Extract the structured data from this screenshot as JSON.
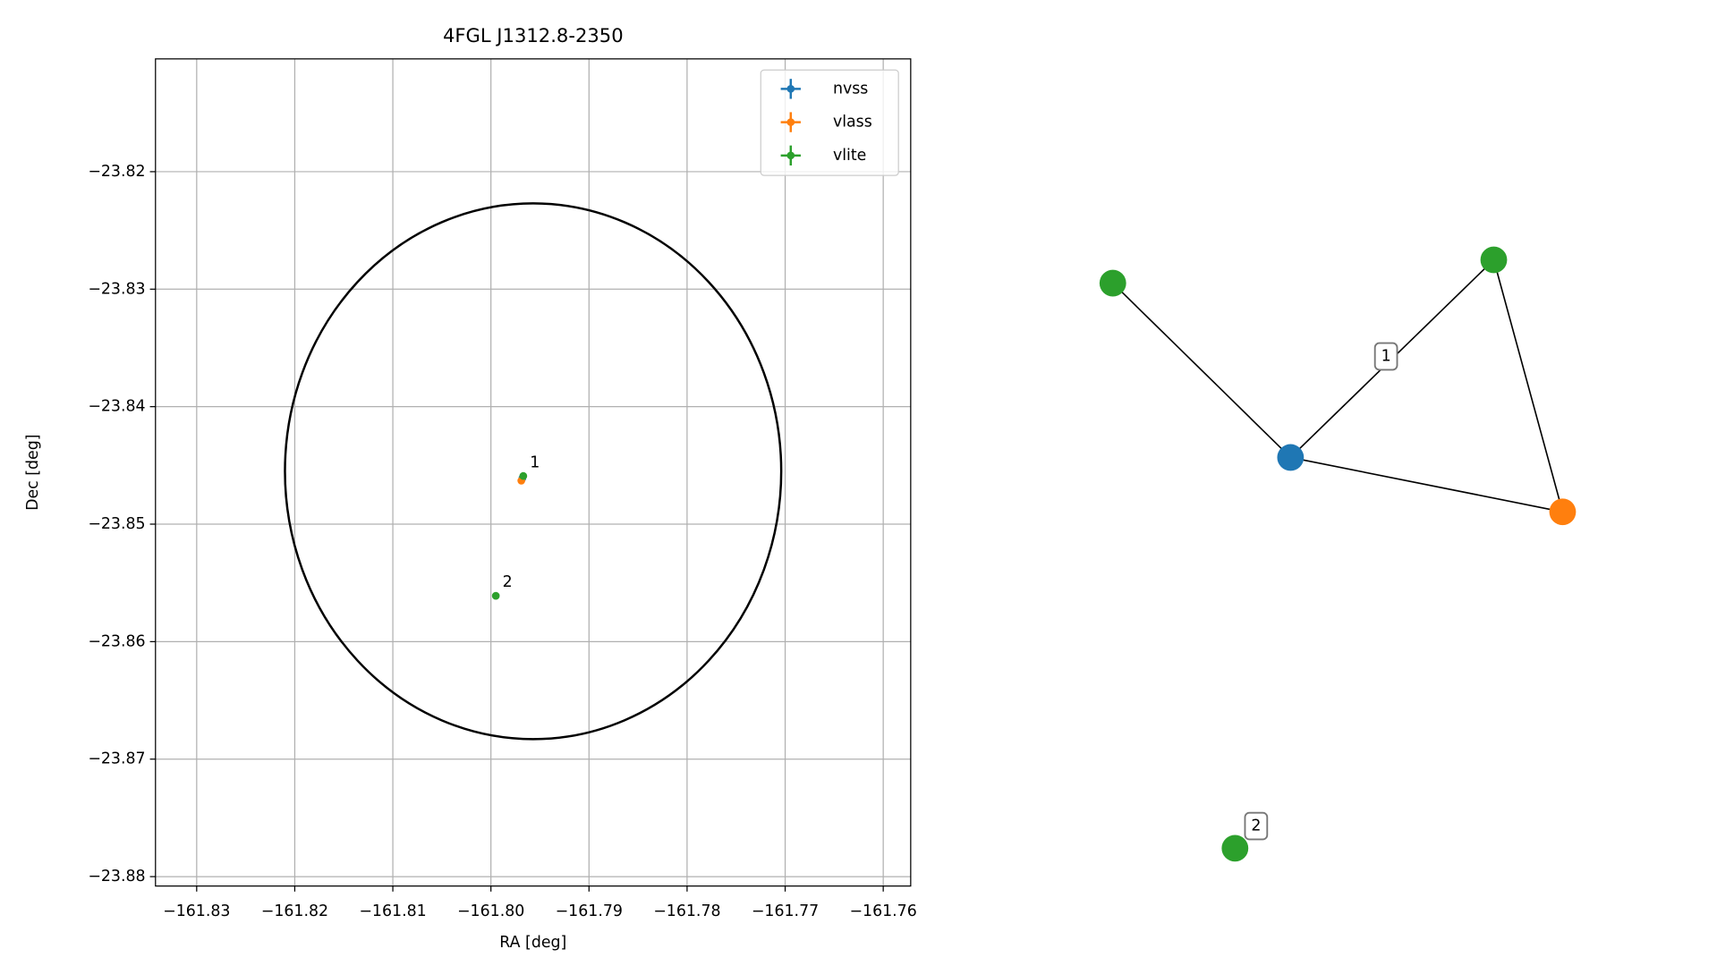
{
  "chart_data": [
    {
      "type": "scatter",
      "title": "4FGL J1312.8-2350",
      "xlabel": "RA [deg]",
      "ylabel": "Dec [deg]",
      "xlim": [
        -161.8342,
        -161.7572
      ],
      "ylim": [
        -23.8808,
        -23.8104
      ],
      "xticks": [
        {
          "value": -161.83,
          "label": "−161.83"
        },
        {
          "value": -161.82,
          "label": "−161.82"
        },
        {
          "value": -161.81,
          "label": "−161.81"
        },
        {
          "value": -161.8,
          "label": "−161.80"
        },
        {
          "value": -161.79,
          "label": "−161.79"
        },
        {
          "value": -161.78,
          "label": "−161.78"
        },
        {
          "value": -161.77,
          "label": "−161.77"
        },
        {
          "value": -161.76,
          "label": "−161.76"
        }
      ],
      "yticks": [
        {
          "value": -23.82,
          "label": "−23.82"
        },
        {
          "value": -23.83,
          "label": "−23.83"
        },
        {
          "value": -23.84,
          "label": "−23.84"
        },
        {
          "value": -23.85,
          "label": "−23.85"
        },
        {
          "value": -23.86,
          "label": "−23.86"
        },
        {
          "value": -23.87,
          "label": "−23.87"
        },
        {
          "value": -23.88,
          "label": "−23.88"
        }
      ],
      "grid": true,
      "legend": "upper right",
      "series": [
        {
          "name": "nvss",
          "color": "#1f77b4",
          "x": [
            -161.7968
          ],
          "values": [
            -23.8461
          ]
        },
        {
          "name": "vlass",
          "color": "#ff7f0e",
          "x": [
            -161.7969
          ],
          "values": [
            -23.8463
          ]
        },
        {
          "name": "vlite",
          "color": "#2ca02c",
          "x": [
            -161.7967,
            -161.7995
          ],
          "values": [
            -23.8459,
            -23.8561
          ]
        }
      ],
      "annotations": [
        {
          "text": "1",
          "x": -161.7967,
          "y": -23.8459
        },
        {
          "text": "2",
          "x": -161.7995,
          "y": -23.8561
        }
      ],
      "ellipse": {
        "x": -161.7957,
        "y": -23.8455,
        "half_width": 0.0253,
        "half_height": 0.0228,
        "color": "#000000"
      }
    },
    {
      "type": "graph",
      "nodes": [
        {
          "color": "#2ca02c"
        },
        {
          "color": "#1f77b4"
        },
        {
          "color": "#2ca02c"
        },
        {
          "color": "#ff7f0e"
        },
        {
          "color": "#2ca02c"
        }
      ],
      "edges": [
        [
          0,
          1
        ],
        [
          1,
          2
        ],
        [
          1,
          3
        ],
        [
          2,
          3
        ]
      ],
      "components": [
        {
          "label": "1"
        },
        {
          "label": "2"
        }
      ]
    }
  ]
}
